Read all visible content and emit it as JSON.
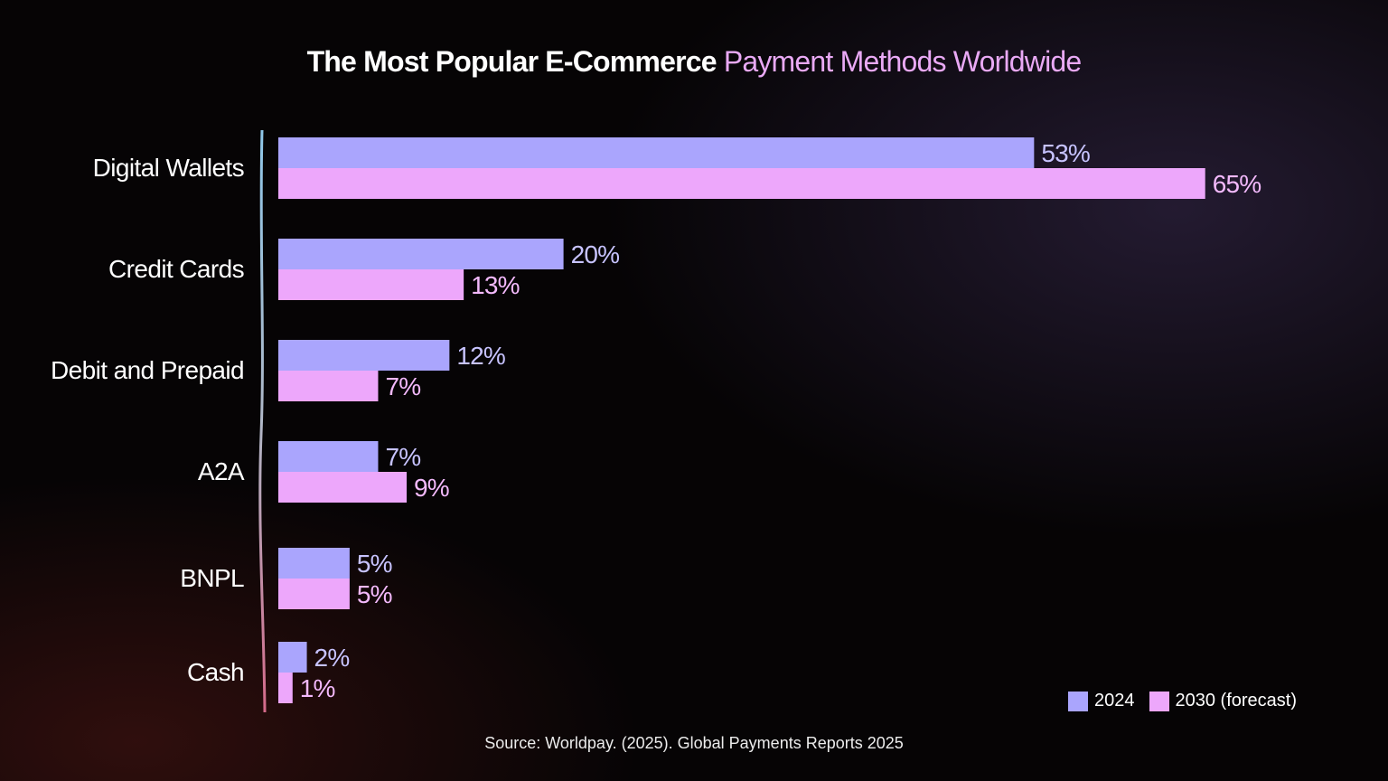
{
  "title": {
    "main": "The Most Popular E-Commerce",
    "accent": "Payment Methods Worldwide"
  },
  "source": "Source: Worldpay. (2025). Global Payments Reports 2025",
  "colors": {
    "series_2024": "#aaa5fd",
    "series_2030": "#eda7fb",
    "label_2024": "#c7c3ff",
    "label_2030": "#f3b9fc",
    "axis_top": "#8ec6e8",
    "axis_bottom": "#d46a8a"
  },
  "chart_data": {
    "type": "bar",
    "orientation": "horizontal",
    "title": "The Most Popular E-Commerce Payment Methods Worldwide",
    "categories": [
      "Digital Wallets",
      "Credit Cards",
      "Debit and Prepaid",
      "A2A",
      "BNPL",
      "Cash"
    ],
    "series": [
      {
        "name": "2024",
        "values": [
          53,
          20,
          12,
          7,
          5,
          2
        ],
        "labels": [
          "53%",
          "20%",
          "12%",
          "7%",
          "5%",
          "2%"
        ]
      },
      {
        "name": "2030 (forecast)",
        "values": [
          65,
          13,
          7,
          9,
          5,
          1
        ],
        "labels": [
          "65%",
          "13%",
          "7%",
          "9%",
          "5%",
          "1%"
        ]
      }
    ],
    "xlim": [
      0,
      65
    ],
    "grid": false,
    "legend_position": "bottom-right"
  }
}
